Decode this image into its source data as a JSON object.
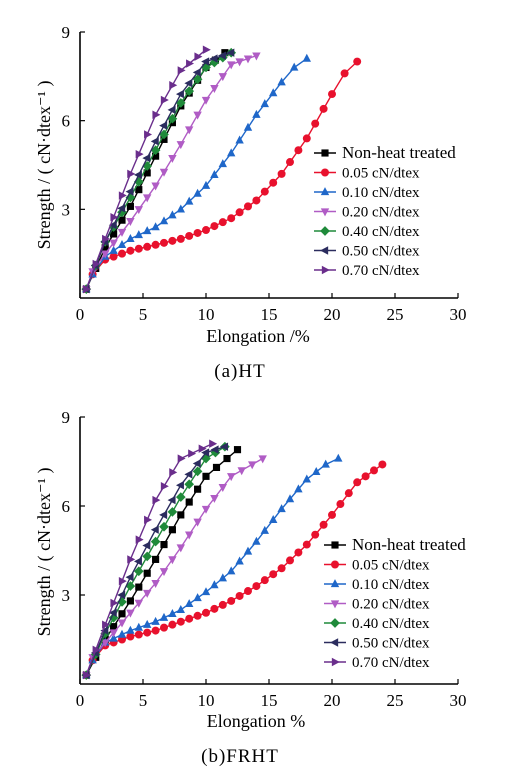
{
  "chart_data": [
    {
      "type": "line",
      "caption": "(a)HT",
      "xlabel": "Elongation /%",
      "ylabel": "Strength / ( cN·dtex⁻¹ )",
      "xlim": [
        0,
        30
      ],
      "ylim": [
        0,
        9
      ],
      "xticks": [
        "0",
        "5",
        "10",
        "15",
        "20",
        "25",
        "30"
      ],
      "yticks": [
        "3",
        "6",
        "9"
      ],
      "legend_position": "right-middle",
      "series": [
        {
          "name": "Non-heat treated",
          "color": "#000000",
          "marker": "square",
          "x": [
            0.5,
            2,
            4,
            6,
            8,
            10,
            11.5
          ],
          "y": [
            0.3,
            1.7,
            3.1,
            4.8,
            6.5,
            7.8,
            8.3
          ]
        },
        {
          "name": "0.05 cN/dtex",
          "color": "#e8112d",
          "marker": "circle",
          "x": [
            0.5,
            1,
            2,
            4,
            6,
            8,
            10,
            12,
            14,
            16,
            18,
            20,
            21,
            22
          ],
          "y": [
            0.3,
            0.8,
            1.3,
            1.6,
            1.8,
            2.0,
            2.3,
            2.7,
            3.3,
            4.2,
            5.4,
            6.9,
            7.6,
            8.0
          ]
        },
        {
          "name": "0.10 cN/dtex",
          "color": "#1f67c9",
          "marker": "triangle-up",
          "x": [
            0.5,
            1,
            2,
            4,
            6,
            8,
            10,
            12,
            14,
            16,
            17,
            18
          ],
          "y": [
            0.3,
            0.8,
            1.4,
            2.0,
            2.4,
            3.0,
            3.8,
            4.9,
            6.2,
            7.3,
            7.8,
            8.1
          ]
        },
        {
          "name": "0.20 cN/dtex",
          "color": "#b05cc5",
          "marker": "triangle-down",
          "x": [
            0.5,
            1,
            2,
            4,
            6,
            8,
            10,
            12,
            14
          ],
          "y": [
            0.3,
            0.9,
            1.5,
            2.6,
            3.8,
            5.2,
            6.7,
            7.9,
            8.2
          ]
        },
        {
          "name": "0.40 cN/dtex",
          "color": "#1f8a3a",
          "marker": "diamond",
          "x": [
            0.5,
            2,
            4,
            6,
            8,
            10,
            12
          ],
          "y": [
            0.3,
            1.9,
            3.4,
            5.0,
            6.6,
            7.8,
            8.3
          ]
        },
        {
          "name": "0.50 cN/dtex",
          "color": "#2b2c5e",
          "marker": "triangle-left",
          "x": [
            0.5,
            2,
            4,
            6,
            8,
            10,
            12
          ],
          "y": [
            0.3,
            1.9,
            3.6,
            5.3,
            6.9,
            8.0,
            8.3
          ]
        },
        {
          "name": "0.70 cN/dtex",
          "color": "#6a2e8c",
          "marker": "triangle-right",
          "x": [
            0.5,
            2,
            4,
            6,
            8,
            10
          ],
          "y": [
            0.3,
            2.0,
            4.2,
            6.2,
            7.7,
            8.4
          ]
        }
      ]
    },
    {
      "type": "line",
      "caption": "(b)FRHT",
      "xlabel": "Elongation %",
      "ylabel": "Strength / ( cN·dtex⁻¹ )",
      "xlim": [
        0,
        30
      ],
      "ylim": [
        0,
        9
      ],
      "xticks": [
        "0",
        "5",
        "10",
        "15",
        "20",
        "25",
        "30"
      ],
      "yticks": [
        "3",
        "6",
        "9"
      ],
      "legend_position": "right-middle",
      "series": [
        {
          "name": "Non-heat treated",
          "color": "#000000",
          "marker": "square",
          "x": [
            0.5,
            2,
            4,
            6,
            8,
            10,
            12.5
          ],
          "y": [
            0.3,
            1.5,
            2.8,
            4.2,
            5.7,
            7.0,
            7.9
          ]
        },
        {
          "name": "0.05 cN/dtex",
          "color": "#e8112d",
          "marker": "circle",
          "x": [
            0.5,
            1,
            2,
            4,
            6,
            8,
            10,
            12,
            14,
            16,
            18,
            20,
            22,
            24
          ],
          "y": [
            0.3,
            0.8,
            1.3,
            1.6,
            1.8,
            2.1,
            2.4,
            2.8,
            3.3,
            3.9,
            4.7,
            5.7,
            6.8,
            7.4
          ]
        },
        {
          "name": "0.10 cN/dtex",
          "color": "#1f67c9",
          "marker": "triangle-up",
          "x": [
            0.5,
            1,
            2,
            4,
            6,
            8,
            10,
            12,
            14,
            16,
            18,
            19.5,
            20.5
          ],
          "y": [
            0.3,
            0.8,
            1.4,
            1.8,
            2.1,
            2.5,
            3.1,
            3.8,
            4.8,
            5.9,
            6.9,
            7.4,
            7.6
          ]
        },
        {
          "name": "0.20 cN/dtex",
          "color": "#b05cc5",
          "marker": "triangle-down",
          "x": [
            0.5,
            1,
            2,
            4,
            6,
            8,
            10,
            12,
            14.5
          ],
          "y": [
            0.3,
            0.9,
            1.4,
            2.4,
            3.4,
            4.6,
            5.9,
            7.0,
            7.6
          ]
        },
        {
          "name": "0.40 cN/dtex",
          "color": "#1f8a3a",
          "marker": "diamond",
          "x": [
            0.5,
            2,
            4,
            6,
            8,
            10,
            11.5
          ],
          "y": [
            0.3,
            1.7,
            3.3,
            4.8,
            6.3,
            7.6,
            8.0
          ]
        },
        {
          "name": "0.50 cN/dtex",
          "color": "#2b2c5e",
          "marker": "triangle-left",
          "x": [
            0.5,
            2,
            4,
            6,
            8,
            10,
            11.5
          ],
          "y": [
            0.3,
            1.8,
            3.6,
            5.2,
            6.7,
            7.8,
            8.0
          ]
        },
        {
          "name": "0.70 cN/dtex",
          "color": "#6a2e8c",
          "marker": "triangle-right",
          "x": [
            0.5,
            2,
            4,
            6,
            8,
            10.5
          ],
          "y": [
            0.3,
            2.0,
            4.2,
            6.2,
            7.6,
            8.1
          ]
        }
      ]
    }
  ]
}
